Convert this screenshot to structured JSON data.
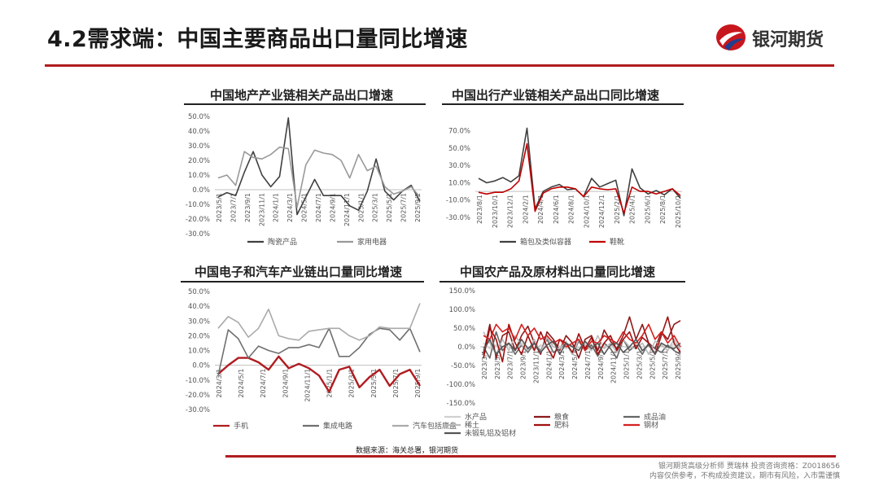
{
  "slide": {
    "title": "4.2需求端：中国主要商品出口量同比增速",
    "logo_text": "银河期货",
    "source": "数据来源：海关总署，银河期货",
    "disclaimer_line1": "银河期货高级分析师 贾瑞林 投资咨询资格：Z0018656",
    "disclaimer_line2": "内容仅供参考，不构成投资建议，期市有风险，入市需谨慎"
  },
  "colors": {
    "accent": "#b01c20",
    "dark_gray": "#404040",
    "mid_gray": "#888888",
    "light_gray": "#aaaaaa",
    "red": "#c00000",
    "dark_red": "#8b1a1a"
  },
  "chart_data": [
    {
      "id": "realestate",
      "type": "line",
      "title": "中国地产产业链相关产品出口增速",
      "ylim": [
        -30,
        50
      ],
      "yticks": [
        -30,
        -20,
        -10,
        0,
        10,
        20,
        30,
        40,
        50
      ],
      "ytick_labels": [
        "-30.0%",
        "-20.0%",
        "-10.0%",
        "0.0%",
        "10.0%",
        "20.0%",
        "30.0%",
        "40.0%",
        "50.0%"
      ],
      "x_tick_labels": [
        "2023/5/1",
        "2023/7/1",
        "2023/9/1",
        "2023/11/1",
        "2024/1/1",
        "2024/3/1",
        "2024/5/1",
        "2024/7/1",
        "2024/9/1",
        "2024/11/1",
        "2025/1/1",
        "2025/3/1",
        "2025/5/1",
        "2025/7/1",
        "2025/9/1"
      ],
      "series": [
        {
          "name": "陶瓷产品",
          "color": "#404040",
          "values": [
            -5,
            -2,
            -4,
            12,
            26,
            10,
            2,
            9,
            49,
            -17,
            -5,
            7,
            -4,
            -4,
            -4,
            -11,
            -14,
            -1,
            21,
            -1,
            -7,
            -1,
            3,
            -8
          ]
        },
        {
          "name": "家用电器",
          "color": "#999999",
          "values": [
            8,
            10,
            3,
            26,
            22,
            21,
            24,
            29,
            28,
            -12,
            17,
            27,
            25,
            24,
            20,
            8,
            24,
            13,
            16,
            2,
            -3,
            -1,
            2,
            -5
          ]
        }
      ]
    },
    {
      "id": "travel",
      "type": "line",
      "title": "中国出行产业链相关产品出口同比增速",
      "ylim": [
        -30,
        80
      ],
      "yticks": [
        -30,
        -10,
        10,
        30,
        50,
        70
      ],
      "ytick_labels": [
        "-30.0%",
        "-10.0%",
        "10.0%",
        "30.0%",
        "50.0%",
        "70.0%"
      ],
      "x_tick_labels": [
        "2023/8/1",
        "2023/10/1",
        "2023/12/1",
        "2024/2/1",
        "2024/4/1",
        "2024/6/1",
        "2024/8/1",
        "2024/10/1",
        "2024/12/1",
        "2025/2/1",
        "2025/4/1",
        "2025/6/1",
        "2025/8/1",
        "2025/10/1"
      ],
      "series": [
        {
          "name": "箱包及类似容器",
          "color": "#404040",
          "values": [
            15,
            10,
            12,
            16,
            11,
            18,
            73,
            -20,
            0,
            5,
            8,
            2,
            3,
            -6,
            15,
            5,
            9,
            13,
            -28,
            26,
            4,
            -3,
            1,
            -4,
            3,
            -8
          ]
        },
        {
          "name": "鞋靴",
          "color": "#c00000",
          "values": [
            -1,
            -3,
            -1,
            -1,
            3,
            12,
            55,
            -23,
            -2,
            3,
            5,
            5,
            3,
            -6,
            5,
            3,
            2,
            3,
            -25,
            5,
            0,
            0,
            -3,
            0,
            3,
            -5
          ]
        }
      ]
    },
    {
      "id": "electronics",
      "type": "line",
      "title": "中国电子和汽车产业链出口量同比增速",
      "ylim": [
        -30,
        50
      ],
      "yticks": [
        -30,
        -20,
        -10,
        0,
        10,
        20,
        30,
        40,
        50
      ],
      "ytick_labels": [
        "-30.0%",
        "-20.0%",
        "-10.0%",
        "0.0%",
        "10.0%",
        "20.0%",
        "30.0%",
        "40.0%",
        "50.0%"
      ],
      "x_tick_labels": [
        "2024/3/1",
        "2024/5/1",
        "2024/7/1",
        "2024/9/1",
        "2024/11/1",
        "2025/1/1",
        "2025/3/1",
        "2025/5/1",
        "2025/7/1",
        "2025/9/1"
      ],
      "series": [
        {
          "name": "手机",
          "color": "#b01c20",
          "values": [
            -6,
            0,
            5,
            5,
            2,
            -3,
            6,
            -2,
            1,
            -2,
            -7,
            -18,
            -3,
            -1,
            -15,
            -8,
            -3,
            -14,
            -6,
            -3,
            -14
          ]
        },
        {
          "name": "集成电路",
          "color": "#707070",
          "values": [
            -7,
            24,
            18,
            5,
            13,
            10,
            8,
            12,
            12,
            14,
            12,
            25,
            6,
            6,
            12,
            21,
            25,
            24,
            17,
            25,
            9
          ]
        },
        {
          "name": "汽车包括底盘",
          "color": "#aaaaaa",
          "values": [
            25,
            33,
            29,
            19,
            25,
            38,
            20,
            18,
            17,
            23,
            24,
            25,
            25,
            20,
            17,
            20,
            26,
            25,
            25,
            25,
            42
          ]
        }
      ]
    },
    {
      "id": "agri",
      "type": "line",
      "title": "中国农产品及原材料出口量同比增速",
      "ylim": [
        -150,
        150
      ],
      "yticks": [
        -150,
        -100,
        -50,
        0,
        50,
        100,
        150
      ],
      "ytick_labels": [
        "-150.0%",
        "-100.0%",
        "-50.0%",
        "0.0%",
        "50.0%",
        "100.0%",
        "150.0%"
      ],
      "x_tick_labels": [
        "2023/3/1",
        "2023/5/1",
        "2023/7/1",
        "2023/9/1",
        "2023/11/1",
        "2024/1/1",
        "2024/3/1",
        "2024/5/1",
        "2024/7/1",
        "2024/9/1",
        "2024/11/1",
        "2025/1/1",
        "2025/3/1",
        "2025/5/1",
        "2025/7/1",
        "2025/9/1"
      ],
      "series": [
        {
          "name": "水产品",
          "color": "#d0d0d0",
          "values": [
            10,
            -5,
            5,
            -10,
            8,
            -5,
            10,
            0,
            -8,
            5,
            -3,
            8,
            2,
            -5,
            6,
            -4,
            10,
            5,
            -6,
            3,
            -2,
            8,
            1,
            -3,
            5,
            -1,
            4,
            -3,
            2,
            -2,
            6,
            -5
          ]
        },
        {
          "name": "粮食",
          "color": "#8b1a1a",
          "values": [
            -20,
            60,
            -30,
            30,
            40,
            -10,
            30,
            55,
            10,
            -20,
            40,
            20,
            -10,
            30,
            10,
            -30,
            20,
            30,
            -10,
            45,
            15,
            -5,
            30,
            80,
            20,
            60,
            10,
            -5,
            40,
            20,
            60,
            70
          ]
        },
        {
          "name": "成品油",
          "color": "#666666",
          "values": [
            0,
            -30,
            40,
            -10,
            10,
            -20,
            5,
            -15,
            10,
            -10,
            20,
            -15,
            -5,
            10,
            -20,
            15,
            -10,
            5,
            -25,
            10,
            -5,
            -30,
            20,
            -10,
            5,
            -20,
            10,
            -5,
            -15,
            5,
            -10,
            -20
          ]
        },
        {
          "name": "稀土",
          "color": "#bbbbbb",
          "values": [
            40,
            10,
            -20,
            20,
            -10,
            30,
            5,
            -10,
            20,
            -15,
            25,
            0,
            -5,
            15,
            -20,
            20,
            5,
            -10,
            30,
            -5,
            10,
            -15,
            20,
            0,
            -5,
            10,
            -20,
            15,
            5,
            -10,
            20,
            -10
          ]
        },
        {
          "name": "肥料",
          "color": "#a01010",
          "values": [
            -30,
            50,
            20,
            -40,
            60,
            10,
            -20,
            30,
            -10,
            40,
            0,
            -30,
            20,
            10,
            -15,
            35,
            -5,
            25,
            -20,
            10,
            30,
            -10,
            20,
            40,
            -5,
            25,
            10,
            -20,
            30,
            80,
            10,
            -15
          ]
        },
        {
          "name": "钢材",
          "color": "#d42020",
          "values": [
            30,
            20,
            60,
            40,
            50,
            20,
            60,
            30,
            50,
            20,
            30,
            10,
            20,
            0,
            10,
            20,
            -10,
            15,
            10,
            30,
            20,
            10,
            40,
            20,
            10,
            30,
            60,
            20,
            40,
            10,
            30,
            0
          ]
        },
        {
          "name": "未锻轧铝及铝材",
          "color": "#555555",
          "values": [
            -10,
            20,
            -20,
            0,
            10,
            -10,
            20,
            -5,
            10,
            -15,
            5,
            15,
            -20,
            10,
            0,
            -10,
            15,
            -5,
            10,
            -20,
            5,
            10,
            -15,
            0,
            20,
            -10,
            5,
            -20,
            10,
            0,
            -5,
            10
          ]
        }
      ]
    }
  ]
}
